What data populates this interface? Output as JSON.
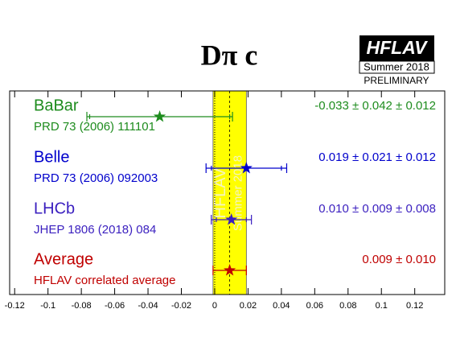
{
  "title": "Dπ c",
  "logo": {
    "name": "HFLAV",
    "season": "Summer 2018",
    "status": "PRELIMINARY"
  },
  "chart_data": {
    "type": "errorbar",
    "categories": [
      "BaBar",
      "Belle",
      "LHCb",
      "Average"
    ],
    "references": [
      "PRD 73 (2006) 111101",
      "PRD 73 (2006) 092003",
      "JHEP 1806 (2018) 084",
      "HFLAV correlated average"
    ],
    "values": [
      -0.033,
      0.019,
      0.01,
      0.009
    ],
    "errors": [
      0.042,
      0.021,
      0.009,
      0.01
    ],
    "syst_errors": [
      0.012,
      0.012,
      0.008,
      null
    ],
    "value_labels": [
      "-0.033 ± 0.042 ± 0.012",
      "0.019 ± 0.021 ± 0.012",
      "0.010 ± 0.009 ± 0.008",
      "0.009 ± 0.010"
    ],
    "colors": [
      "#1e8c1e",
      "#0000cc",
      "#3a1fbf",
      "#c00000"
    ],
    "band_color": "#ffff00",
    "band_labels": [
      "HFLAV",
      "Summer 2018"
    ],
    "xlim": [
      -0.123,
      0.138
    ],
    "xticks": [
      -0.12,
      -0.1,
      -0.08,
      -0.06,
      -0.04,
      -0.02,
      0,
      0.02,
      0.04,
      0.06,
      0.08,
      0.1,
      0.12
    ]
  }
}
